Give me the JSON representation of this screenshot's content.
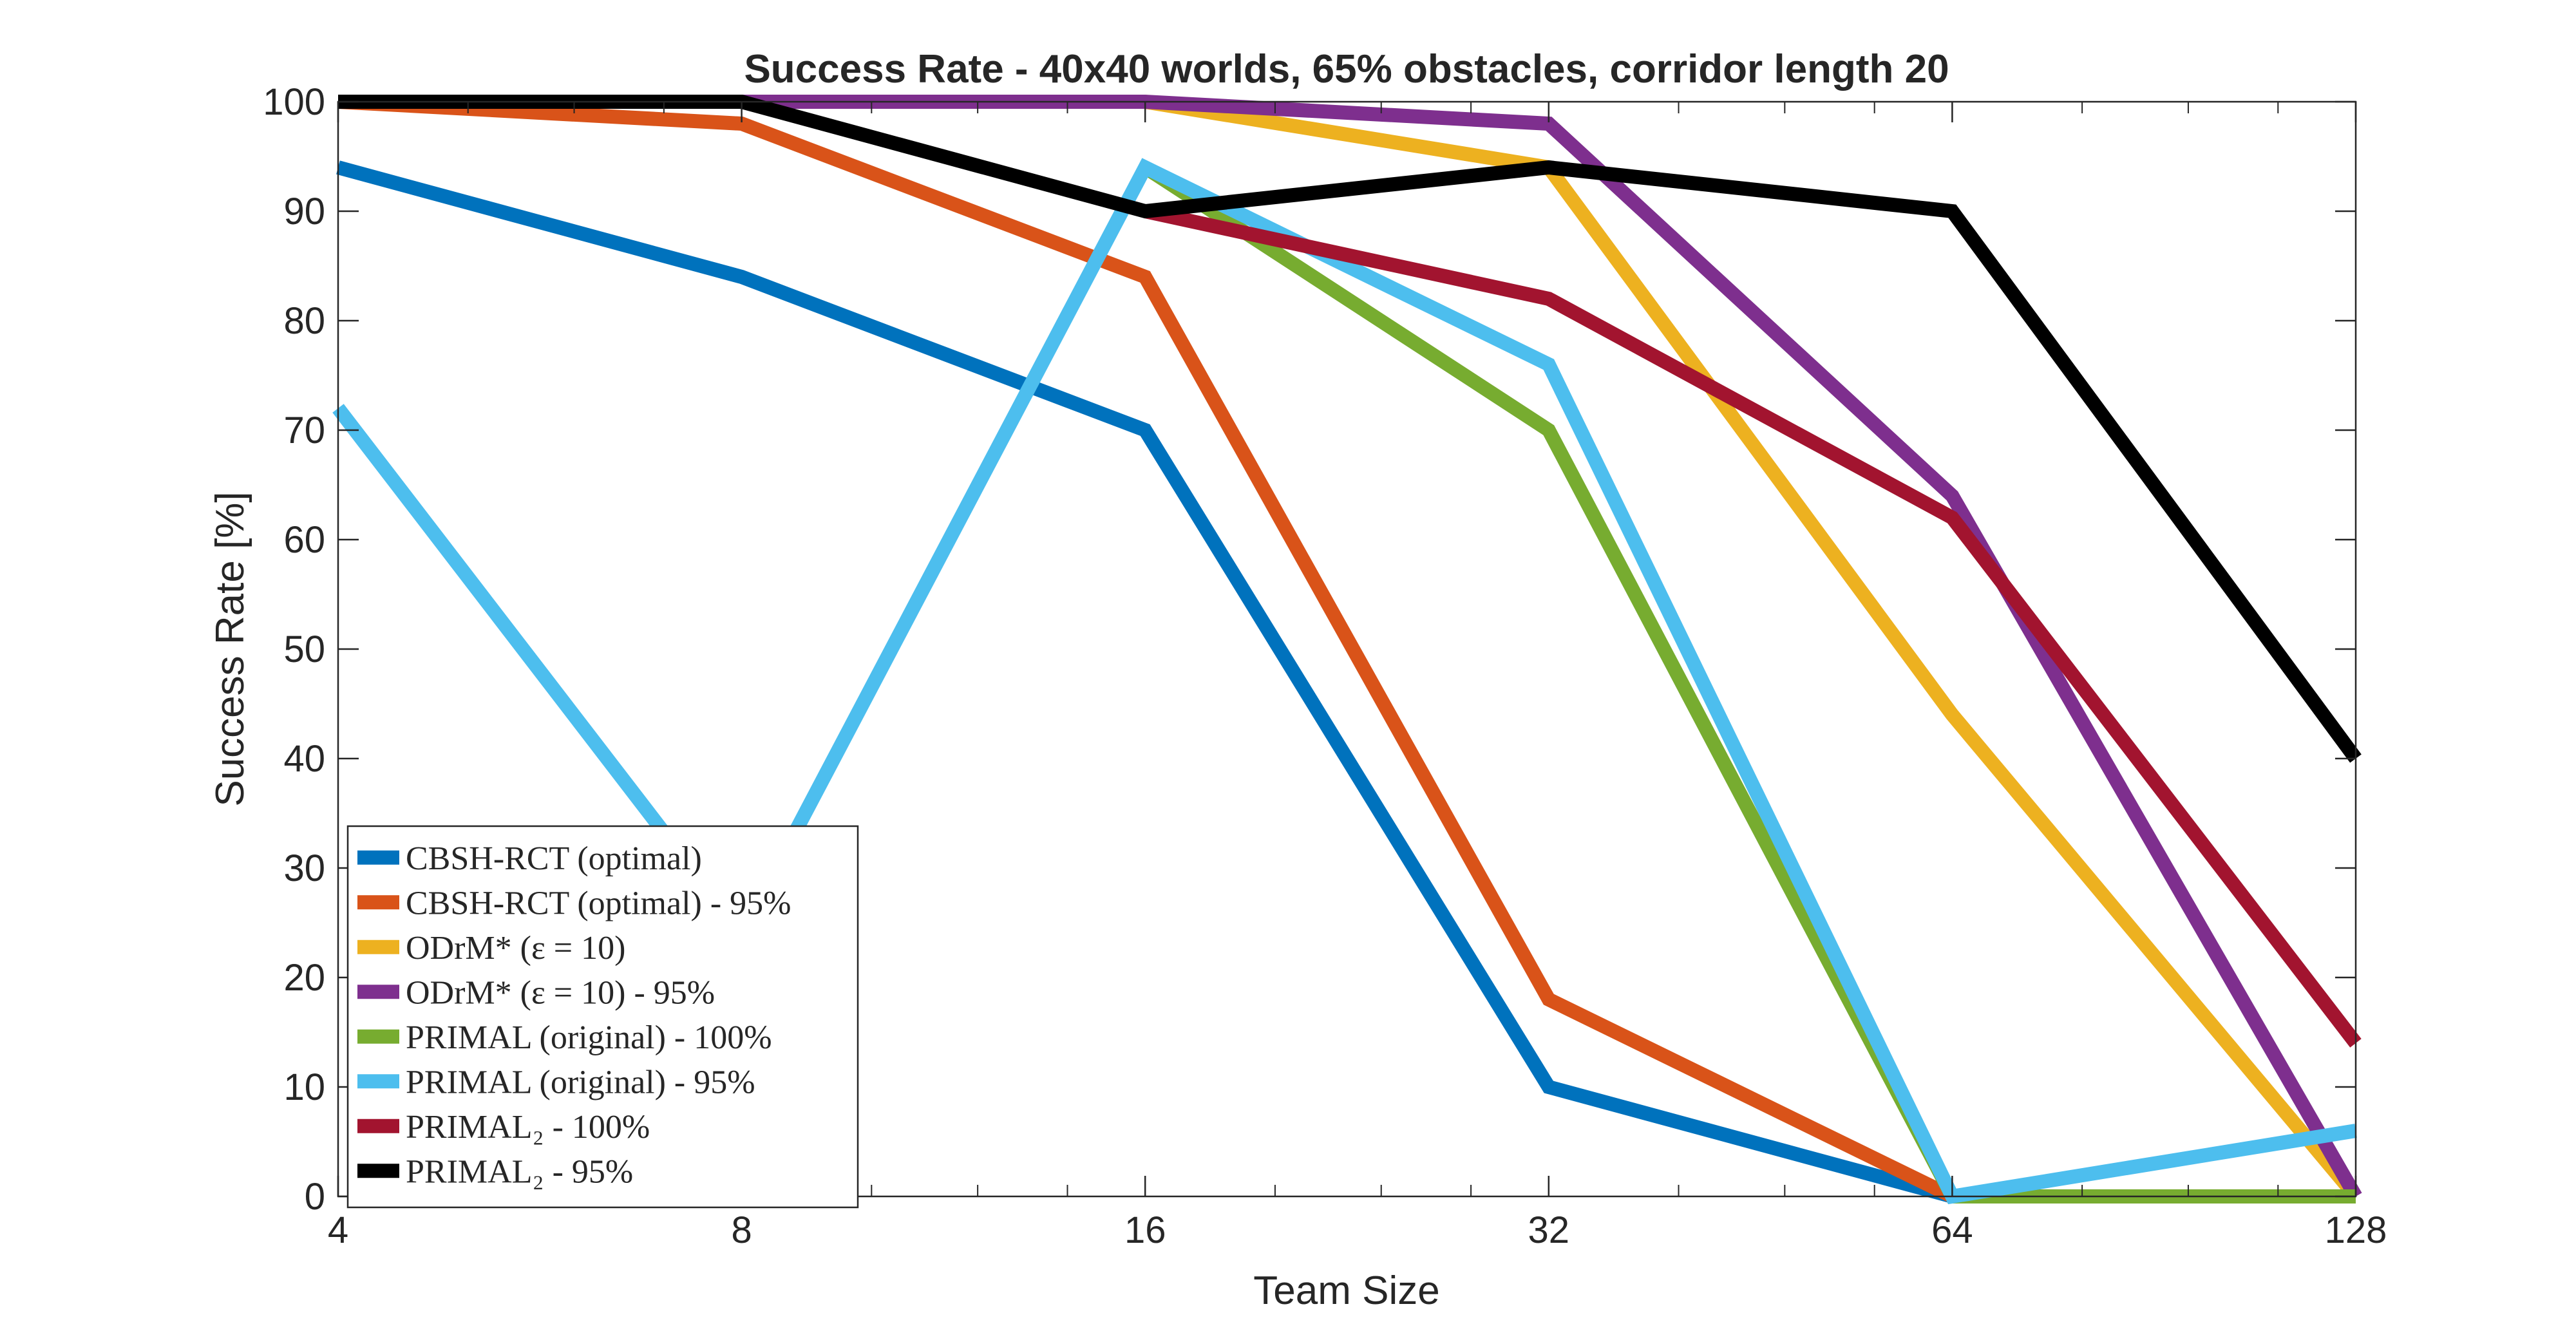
{
  "chart_data": {
    "type": "line",
    "title": "Success Rate - 40x40 worlds, 65% obstacles, corridor length 20",
    "xlabel": "Team Size",
    "ylabel": "Success Rate [%]",
    "x_scale": "log2",
    "x": [
      4,
      8,
      16,
      32,
      64,
      128
    ],
    "x_tick_labels": [
      "4",
      "8",
      "16",
      "32",
      "64",
      "128"
    ],
    "xlim": [
      4,
      128
    ],
    "ylim": [
      0,
      100
    ],
    "y_ticks": [
      0,
      10,
      20,
      30,
      40,
      50,
      60,
      70,
      80,
      90,
      100
    ],
    "grid": false,
    "legend_position": "bottom-left",
    "series": [
      {
        "name": "CBSH-RCT (optimal)",
        "color": "#0072BD",
        "values": [
          94,
          84,
          70,
          10,
          0,
          null
        ]
      },
      {
        "name": "CBSH-RCT (optimal) - 95%",
        "color": "#D95319",
        "values": [
          100,
          98,
          84,
          18,
          0,
          null
        ]
      },
      {
        "name": "ODrM* (ε = 10)",
        "color": "#EDB120",
        "values": [
          100,
          100,
          100,
          94,
          44,
          0
        ]
      },
      {
        "name": "ODrM* (ε = 10) - 95%",
        "color": "#7E2F8E",
        "values": [
          100,
          100,
          100,
          98,
          64,
          0
        ]
      },
      {
        "name": "PRIMAL (original) - 100%",
        "color": "#77AC30",
        "values": [
          null,
          null,
          94,
          70,
          0,
          0
        ]
      },
      {
        "name": "PRIMAL (original) - 95%",
        "color": "#4DBEEE",
        "values": [
          72,
          24,
          94,
          76,
          0,
          6
        ]
      },
      {
        "name": "PRIMAL₂ - 100%",
        "color": "#A2142F",
        "values": [
          null,
          null,
          90,
          82,
          62,
          14
        ]
      },
      {
        "name": "PRIMAL₂ - 95%",
        "color": "#000000",
        "values": [
          100,
          100,
          90,
          94,
          90,
          40
        ]
      }
    ]
  }
}
